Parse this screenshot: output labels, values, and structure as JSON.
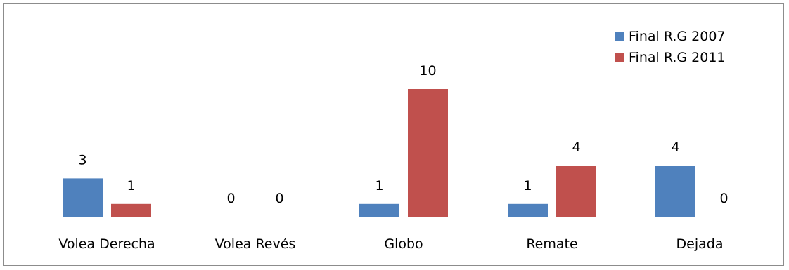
{
  "chart_data": {
    "type": "bar",
    "categories": [
      "Volea Derecha",
      "Volea Revés",
      "Globo",
      "Remate",
      "Dejada"
    ],
    "series": [
      {
        "name": "Final R.G 2007",
        "values": [
          3,
          0,
          1,
          1,
          4
        ],
        "color": "#4F81BD"
      },
      {
        "name": "Final R.G 2011",
        "values": [
          1,
          0,
          10,
          4,
          0
        ],
        "color": "#C0504D"
      }
    ],
    "title": "",
    "xlabel": "",
    "ylabel": "",
    "ylim": [
      0,
      10
    ],
    "grid": false,
    "legend_position": "top-right",
    "data_labels": true
  }
}
